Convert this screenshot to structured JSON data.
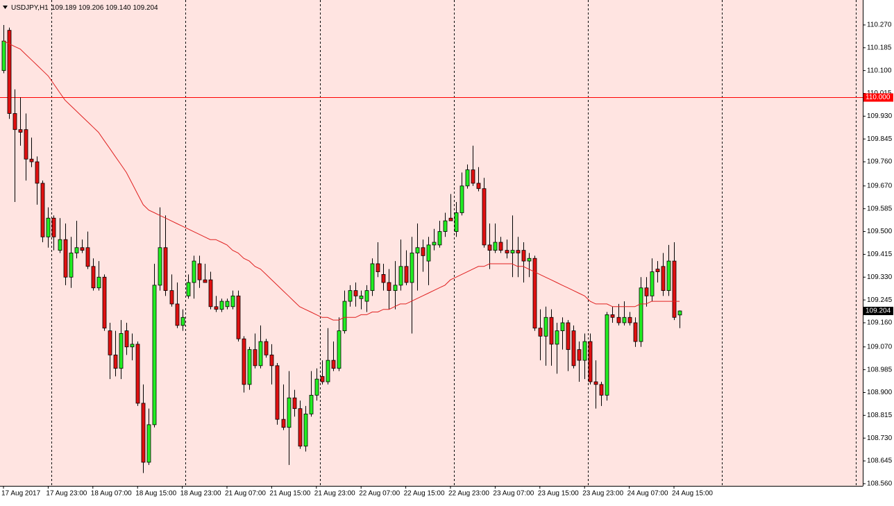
{
  "chart_data": {
    "type": "candlestick",
    "title": "USDJPY,H1",
    "header_values": [
      "109.189",
      "109.206",
      "109.140",
      "109.204"
    ],
    "categories": [
      "17 Aug 2017",
      null,
      null,
      null,
      null,
      null,
      null,
      null,
      "17 Aug 23:00",
      null,
      null,
      null,
      null,
      null,
      null,
      null,
      "18 Aug 07:00",
      null,
      null,
      null,
      null,
      null,
      null,
      null,
      "18 Aug 15:00",
      null,
      null,
      null,
      null,
      null,
      null,
      null,
      "18 Aug 23:00",
      null,
      null,
      null,
      null,
      null,
      null,
      null,
      "21 Aug 07:00",
      null,
      null,
      null,
      null,
      null,
      null,
      null,
      "21 Aug 15:00",
      null,
      null,
      null,
      null,
      null,
      null,
      null,
      "21 Aug 23:00",
      null,
      null,
      null,
      null,
      null,
      null,
      null,
      "22 Aug 07:00",
      null,
      null,
      null,
      null,
      null,
      null,
      null,
      "22 Aug 15:00",
      null,
      null,
      null,
      null,
      null,
      null,
      null,
      "22 Aug 23:00",
      null,
      null,
      null,
      null,
      null,
      null,
      null,
      "23 Aug 07:00",
      null,
      null,
      null,
      null,
      null,
      null,
      null,
      "23 Aug 15:00",
      null,
      null,
      null,
      null,
      null,
      null,
      null,
      "23 Aug 23:00",
      null,
      null,
      null,
      null,
      null,
      null,
      null,
      "24 Aug 07:00",
      null,
      null,
      null,
      null,
      null,
      null,
      null,
      "24 Aug 15:00",
      null
    ],
    "open": [
      110.1,
      110.25,
      109.94,
      109.88,
      109.88,
      109.77,
      109.76,
      109.68,
      109.48,
      109.55,
      109.43,
      109.47,
      109.33,
      109.42,
      109.44,
      109.44,
      109.37,
      109.29,
      109.33,
      109.13,
      109.04,
      108.99,
      109.13,
      109.07,
      109.08,
      108.86,
      108.64,
      108.78,
      109.3,
      109.44,
      109.28,
      109.23,
      109.15,
      109.26,
      109.31,
      109.38,
      109.32,
      109.32,
      109.22,
      109.21,
      109.22,
      109.22,
      109.26,
      109.1,
      108.93,
      109.06,
      109.0,
      109.09,
      109.04,
      109.0,
      108.8,
      108.77,
      108.88,
      108.84,
      108.7,
      108.82,
      108.89,
      108.96,
      108.94,
      109.02,
      108.99,
      109.13,
      109.24,
      109.28,
      109.25,
      109.24,
      109.28,
      109.38,
      109.34,
      109.31,
      109.28,
      109.3,
      109.37,
      109.31,
      109.42,
      109.44,
      109.39,
      109.45,
      109.45,
      109.5,
      109.55,
      109.5,
      109.57,
      109.67,
      109.73,
      109.68,
      109.66,
      109.45,
      109.43,
      109.46,
      109.43,
      109.42,
      109.43,
      109.43,
      109.39,
      109.4,
      109.14,
      109.11,
      109.18,
      109.08,
      109.13,
      109.16,
      109.13,
      109.06,
      109.02,
      109.09,
      108.94,
      108.93,
      108.89,
      109.19,
      109.18,
      109.16,
      109.18,
      109.16,
      109.09,
      109.29,
      109.26,
      109.36,
      109.37,
      109.28,
      109.39,
      109.189
    ],
    "high": [
      110.27,
      110.26,
      110.03,
      110.0,
      109.94,
      109.85,
      109.78,
      109.69,
      109.59,
      109.56,
      109.55,
      109.53,
      109.48,
      109.54,
      109.47,
      109.5,
      109.4,
      109.39,
      109.34,
      109.16,
      109.13,
      109.17,
      109.16,
      109.12,
      109.09,
      108.93,
      108.84,
      109.38,
      109.59,
      109.56,
      109.34,
      109.31,
      109.21,
      109.34,
      109.41,
      109.41,
      109.38,
      109.35,
      109.26,
      109.25,
      109.25,
      109.28,
      109.28,
      109.11,
      109.07,
      109.12,
      109.15,
      109.1,
      109.08,
      109.01,
      108.93,
      108.98,
      108.91,
      108.87,
      108.85,
      108.98,
      108.99,
      109.02,
      109.14,
      109.09,
      109.18,
      109.28,
      109.3,
      109.31,
      109.28,
      109.3,
      109.4,
      109.46,
      109.38,
      109.36,
      109.39,
      109.47,
      109.43,
      109.48,
      109.53,
      109.47,
      109.48,
      109.51,
      109.54,
      109.57,
      109.64,
      109.61,
      109.72,
      109.75,
      109.82,
      109.74,
      109.7,
      109.53,
      109.53,
      109.48,
      109.47,
      109.56,
      109.48,
      109.46,
      109.42,
      109.41,
      109.21,
      109.22,
      109.21,
      109.16,
      109.18,
      109.17,
      109.15,
      109.09,
      109.12,
      109.12,
      109.02,
      108.94,
      109.2,
      109.22,
      109.23,
      109.24,
      109.2,
      109.18,
      109.33,
      109.33,
      109.4,
      109.39,
      109.42,
      109.45,
      109.46,
      109.206
    ],
    "low": [
      110.09,
      109.92,
      109.61,
      109.82,
      109.69,
      109.74,
      109.6,
      109.46,
      109.44,
      109.43,
      109.42,
      109.3,
      109.29,
      109.4,
      109.42,
      109.36,
      109.28,
      109.28,
      109.13,
      108.95,
      108.96,
      108.95,
      109.04,
      109.02,
      108.85,
      108.6,
      108.63,
      108.77,
      109.28,
      109.26,
      109.22,
      109.14,
      109.13,
      109.25,
      109.25,
      109.29,
      109.31,
      109.21,
      109.2,
      109.2,
      109.21,
      109.21,
      109.09,
      108.9,
      108.91,
      108.99,
      108.99,
      109.03,
      108.93,
      108.78,
      108.76,
      108.63,
      108.81,
      108.69,
      108.68,
      108.81,
      108.87,
      108.93,
      108.93,
      108.98,
      108.98,
      109.12,
      109.22,
      109.22,
      109.21,
      109.2,
      109.26,
      109.33,
      109.28,
      109.21,
      109.21,
      109.28,
      109.3,
      109.12,
      109.28,
      109.35,
      109.3,
      109.43,
      109.44,
      109.48,
      109.54,
      109.48,
      109.56,
      109.66,
      109.67,
      109.65,
      109.44,
      109.36,
      109.42,
      109.42,
      109.4,
      109.33,
      109.33,
      109.31,
      109.33,
      109.13,
      109.02,
      109.0,
      109.0,
      108.97,
      109.06,
      108.98,
      108.99,
      108.94,
      108.95,
      108.93,
      108.84,
      108.85,
      108.87,
      109.16,
      109.15,
      109.15,
      109.15,
      109.07,
      109.07,
      109.22,
      109.24,
      109.31,
      109.26,
      109.26,
      109.17,
      109.14
    ],
    "close": [
      110.21,
      109.94,
      109.88,
      109.87,
      109.77,
      109.76,
      109.68,
      109.48,
      109.55,
      109.48,
      109.47,
      109.33,
      109.42,
      109.44,
      109.43,
      109.37,
      109.29,
      109.33,
      109.14,
      109.04,
      108.99,
      109.12,
      109.07,
      109.08,
      108.86,
      108.64,
      108.78,
      109.3,
      109.44,
      109.28,
      109.23,
      109.15,
      109.18,
      109.31,
      109.39,
      109.32,
      109.31,
      109.22,
      109.21,
      109.24,
      109.24,
      109.26,
      109.1,
      108.93,
      109.06,
      109.0,
      109.09,
      109.04,
      109.0,
      108.8,
      108.77,
      108.88,
      108.84,
      108.7,
      108.82,
      108.89,
      108.95,
      108.94,
      109.02,
      108.99,
      109.13,
      109.24,
      109.28,
      109.26,
      109.26,
      109.28,
      109.38,
      109.35,
      109.31,
      109.28,
      109.3,
      109.37,
      109.31,
      109.42,
      109.44,
      109.41,
      109.45,
      109.46,
      109.5,
      109.54,
      109.54,
      109.57,
      109.67,
      109.73,
      109.68,
      109.66,
      109.45,
      109.43,
      109.46,
      109.43,
      109.42,
      109.43,
      109.42,
      109.39,
      109.4,
      109.14,
      109.11,
      109.18,
      109.08,
      109.13,
      109.16,
      109.06,
      109.0,
      109.02,
      109.09,
      108.94,
      108.93,
      108.89,
      109.19,
      109.18,
      109.16,
      109.18,
      109.16,
      109.09,
      109.29,
      109.26,
      109.35,
      109.35,
      109.28,
      109.39,
      109.18,
      109.204
    ],
    "up_color": "#22ee22",
    "down_color": "#e01010",
    "moving_average": {
      "color": "#e02020",
      "values": [
        110.21,
        110.2,
        110.19,
        110.18,
        110.16,
        110.14,
        110.12,
        110.1,
        110.08,
        110.05,
        110.02,
        109.99,
        109.97,
        109.95,
        109.93,
        109.91,
        109.89,
        109.87,
        109.84,
        109.81,
        109.78,
        109.75,
        109.72,
        109.68,
        109.64,
        109.6,
        109.58,
        109.57,
        109.56,
        109.55,
        109.54,
        109.53,
        109.52,
        109.51,
        109.5,
        109.49,
        109.48,
        109.47,
        109.47,
        109.46,
        109.45,
        109.43,
        109.42,
        109.4,
        109.39,
        109.37,
        109.36,
        109.34,
        109.32,
        109.3,
        109.28,
        109.26,
        109.24,
        109.22,
        109.21,
        109.2,
        109.19,
        109.18,
        109.18,
        109.17,
        109.17,
        109.18,
        109.18,
        109.18,
        109.19,
        109.19,
        109.2,
        109.2,
        109.21,
        109.21,
        109.22,
        109.23,
        109.23,
        109.24,
        109.25,
        109.26,
        109.27,
        109.28,
        109.29,
        109.3,
        109.32,
        109.33,
        109.34,
        109.35,
        109.36,
        109.37,
        109.37,
        109.38,
        109.38,
        109.38,
        109.38,
        109.38,
        109.37,
        109.37,
        109.36,
        109.35,
        109.34,
        109.33,
        109.32,
        109.31,
        109.3,
        109.29,
        109.28,
        109.27,
        109.26,
        109.24,
        109.23,
        109.23,
        109.23,
        109.22,
        109.22,
        109.22,
        109.22,
        109.22,
        109.23,
        109.23,
        109.24,
        109.24,
        109.24,
        109.24,
        109.24,
        109.24
      ]
    },
    "hline": {
      "value": 110.0,
      "label": "110.000",
      "color": "#ff0000"
    },
    "ylim": [
      108.552,
      110.363
    ],
    "yticks": [
      {
        "value": 110.27,
        "label": "110.270"
      },
      110.185,
      {
        "value": 110.1,
        "label": "110.100"
      },
      110.015,
      {
        "value": 109.93,
        "label": "109.930"
      },
      109.845,
      {
        "value": 109.76,
        "label": "109.760"
      },
      {
        "value": 109.67,
        "label": "109.670"
      },
      109.585,
      {
        "value": 109.5,
        "label": "109.500"
      },
      109.415,
      {
        "value": 109.33,
        "label": "109.330"
      },
      109.245,
      {
        "value": 109.16,
        "label": "109.160"
      },
      {
        "value": 109.07,
        "label": "109.070"
      },
      108.985,
      {
        "value": 108.9,
        "label": "108.900"
      },
      108.815,
      {
        "value": 108.73,
        "label": "108.730"
      },
      108.645,
      {
        "value": 108.56,
        "label": "108.560"
      }
    ],
    "background": "#ffe4e1"
  }
}
